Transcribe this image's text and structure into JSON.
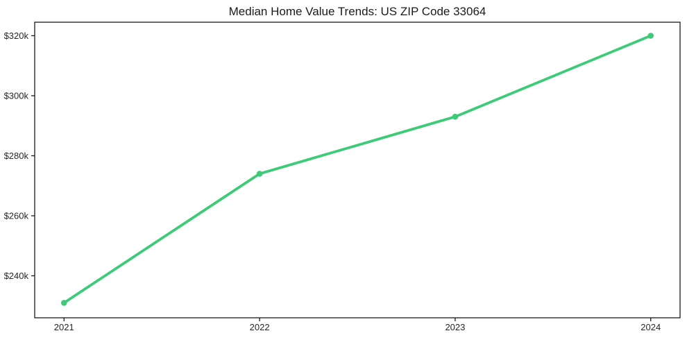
{
  "chart_data": {
    "type": "line",
    "title": "Median Home Value Trends: US ZIP Code 33064",
    "xlabel": "",
    "ylabel": "",
    "x": [
      2021,
      2022,
      2023,
      2024
    ],
    "series": [
      {
        "name": "Median Home Value",
        "values": [
          231000,
          274000,
          293000,
          320000
        ]
      }
    ],
    "xticks": [
      2021,
      2022,
      2023,
      2024
    ],
    "xtick_labels": [
      "2021",
      "2022",
      "2023",
      "2024"
    ],
    "yticks": [
      240000,
      260000,
      280000,
      300000,
      320000
    ],
    "ytick_labels": [
      "$240k",
      "$260k",
      "$280k",
      "$300k",
      "$320k"
    ],
    "xlim": [
      2020.85,
      2024.15
    ],
    "ylim": [
      226000,
      324500
    ],
    "grid": false,
    "legend": "none",
    "line_color": "#3dcb78",
    "marker": "circle",
    "axis_color": "#1a1a1a",
    "text_color": "#262626"
  }
}
